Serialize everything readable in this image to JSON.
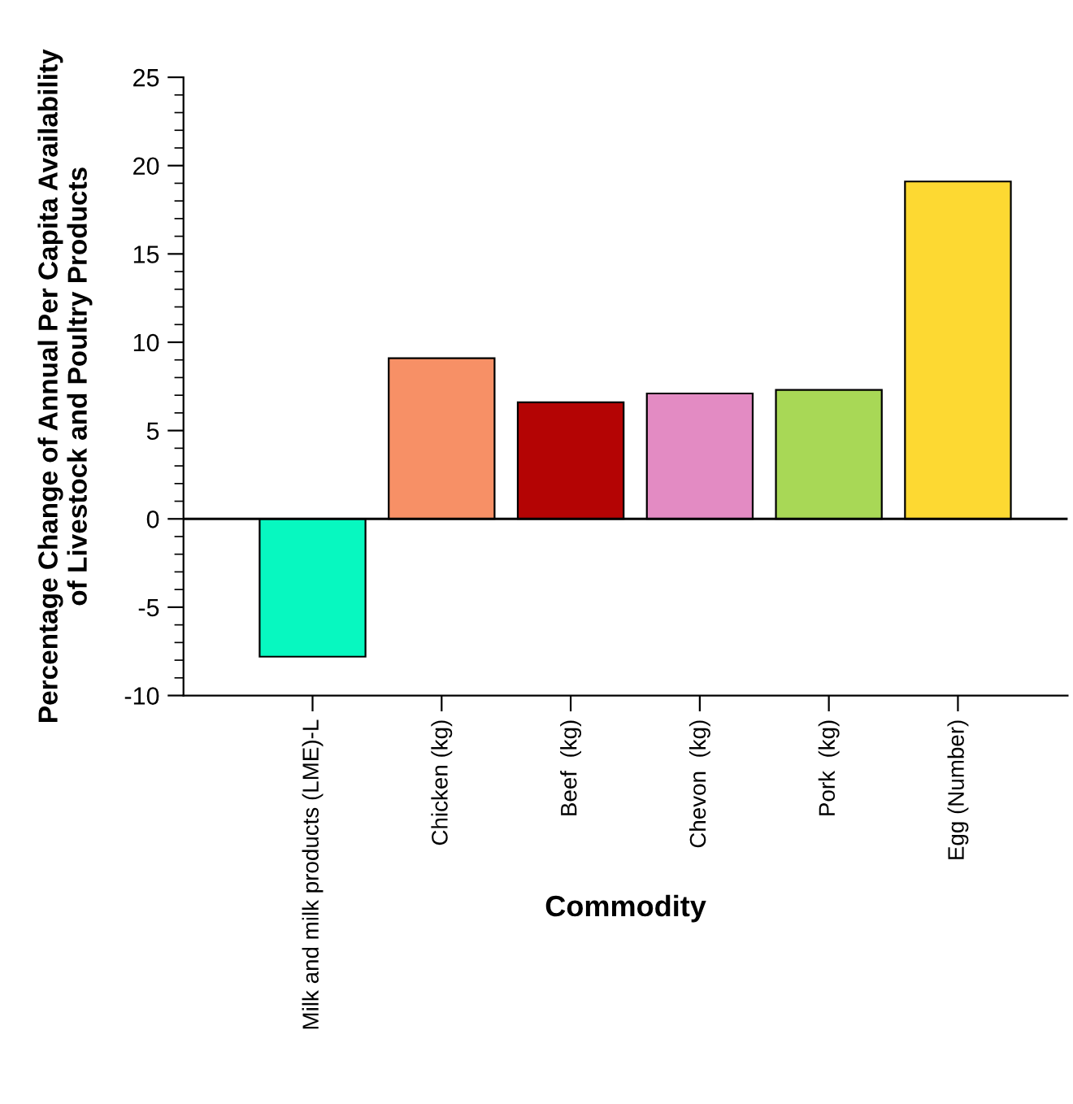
{
  "chart_data": {
    "type": "bar",
    "ylabel": "Percentage Change of Annual Per Capita Availability\nof Livestock and Poultry Products",
    "xlabel": "Commodity",
    "categories": [
      "Milk and milk products (LME)-L",
      "Chicken (kg)",
      "Beef  (kg)",
      "Chevon  (kg)",
      "Pork  (kg)",
      "Egg (Number)"
    ],
    "values": [
      -7.8,
      9.1,
      6.6,
      7.1,
      7.3,
      19.1
    ],
    "colors": [
      "#07f8c0",
      "#f79066",
      "#b40404",
      "#e38bc3",
      "#a8d856",
      "#fdd932"
    ],
    "ylim": [
      -10,
      25
    ],
    "yticks": [
      -10,
      -5,
      0,
      5,
      10,
      15,
      20,
      25
    ]
  }
}
